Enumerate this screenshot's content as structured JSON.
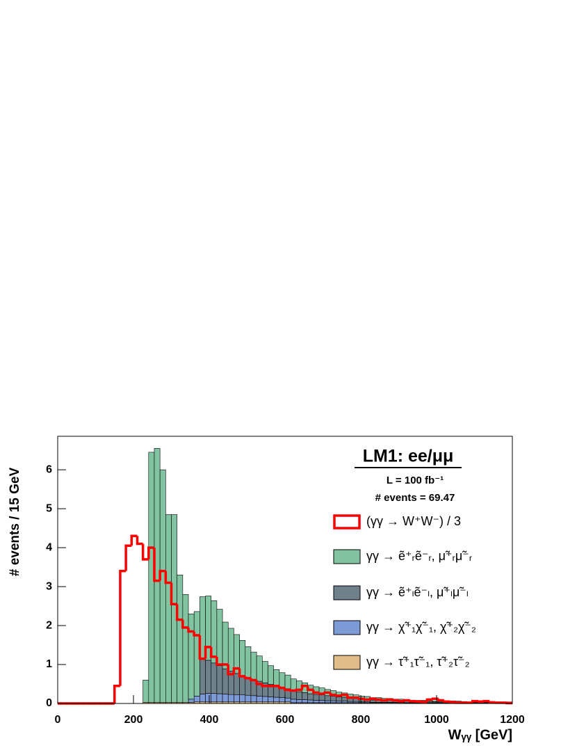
{
  "chart_data": {
    "type": "histogram",
    "title": "LM1: ee/μμ",
    "annotations": [
      "L = 100 fb⁻¹",
      "# events = 69.47"
    ],
    "x_label": "Wᵧᵧ [GeV]",
    "y_label": "# events / 15 GeV",
    "bins": [
      0,
      15,
      30,
      45,
      60,
      75,
      90,
      105,
      120,
      135,
      150,
      165,
      180,
      195,
      210,
      225,
      240,
      255,
      270,
      285,
      300,
      315,
      330,
      345,
      360,
      375,
      390,
      405,
      420,
      435,
      450,
      465,
      480,
      495,
      510,
      525,
      540,
      555,
      570,
      585,
      600,
      615,
      630,
      645,
      660,
      675,
      690,
      705,
      720,
      735,
      750,
      765,
      780,
      795,
      810,
      825,
      840,
      855,
      870,
      885,
      900,
      915,
      930,
      945,
      960,
      975,
      990,
      1005,
      1020,
      1035,
      1050,
      1065,
      1080,
      1095,
      1110,
      1125,
      1140,
      1155,
      1170,
      1185,
      1200
    ],
    "series": [
      {
        "name": "(γγ → W⁺W⁻) / 3",
        "color": "#ff0000",
        "stacked": false,
        "values": [
          0,
          0,
          0,
          0,
          0,
          0,
          0,
          0,
          0,
          0,
          0.45,
          3.4,
          4.05,
          4.3,
          4.1,
          3.7,
          4.0,
          3.15,
          3.4,
          3.1,
          2.55,
          2.15,
          1.95,
          1.85,
          1.75,
          1.15,
          1.45,
          1.2,
          1.0,
          1.0,
          0.75,
          0.9,
          0.7,
          0.65,
          0.6,
          0.5,
          0.45,
          0.45,
          0.45,
          0.4,
          0.35,
          0.33,
          0.35,
          0.45,
          0.35,
          0.28,
          0.25,
          0.28,
          0.22,
          0.2,
          0.22,
          0.15,
          0.15,
          0.12,
          0.1,
          0.12,
          0.1,
          0.08,
          0.1,
          0.08,
          0.06,
          0.08,
          0.06,
          0.05,
          0.04,
          0.1,
          0.12,
          0.08,
          0.05,
          0.04,
          0.02,
          0.02,
          0.02,
          0.06,
          0.05,
          0.06,
          0.03,
          0.02,
          0.02,
          0.01
        ]
      },
      {
        "name": "γγ → ẽ⁺ᵣẽ⁻ᵣ, μ̃⁺ᵣμ̃⁻ᵣ",
        "color": "#82c3a2",
        "stacked": true,
        "values": [
          0,
          0,
          0,
          0,
          0,
          0,
          0,
          0,
          0,
          0,
          0,
          0,
          0,
          0,
          0,
          0.57,
          6.42,
          6.52,
          5.97,
          4.82,
          4.82,
          3.27,
          2.77,
          2.19,
          2.17,
          1.6,
          1.65,
          1.6,
          1.45,
          1.2,
          1.1,
          1.0,
          0.9,
          0.8,
          0.7,
          0.65,
          0.55,
          0.48,
          0.42,
          0.38,
          0.35,
          0.3,
          0.28,
          0.25,
          0.22,
          0.2,
          0.18,
          0.16,
          0.14,
          0.12,
          0.11,
          0.1,
          0.09,
          0.08,
          0.07,
          0.06,
          0.06,
          0.05,
          0.05,
          0.04,
          0.04,
          0.03,
          0.03,
          0.03,
          0.03,
          0.02,
          0.02,
          0.02,
          0.02,
          0.02,
          0.02,
          0.01,
          0.01,
          0.01,
          0.01,
          0.01,
          0.01,
          0.01,
          0.01,
          0.01
        ]
      },
      {
        "name": "γγ → ẽ⁺ₗẽ⁻ₗ, μ̃⁺ₗμ̃⁻ₗ",
        "color": "#6e8089",
        "stacked": true,
        "values": [
          0,
          0,
          0,
          0,
          0,
          0,
          0,
          0,
          0,
          0,
          0,
          0,
          0,
          0,
          0,
          0,
          0,
          0,
          0,
          0,
          0,
          0,
          0,
          0,
          0,
          0.9,
          0.85,
          0.78,
          0.72,
          0.65,
          0.6,
          0.55,
          0.5,
          0.45,
          0.42,
          0.38,
          0.35,
          0.32,
          0.29,
          0.26,
          0.24,
          0.22,
          0.2,
          0.18,
          0.16,
          0.15,
          0.14,
          0.13,
          0.12,
          0.11,
          0.1,
          0.09,
          0.08,
          0.07,
          0.07,
          0.06,
          0.06,
          0.05,
          0.05,
          0.04,
          0.04,
          0.04,
          0.03,
          0.03,
          0.03,
          0.03,
          0.02,
          0.02,
          0.02,
          0.02,
          0.02,
          0.02,
          0.01,
          0.01,
          0.01,
          0.01,
          0.01,
          0.01,
          0.01,
          0.01
        ]
      },
      {
        "name": "γγ → χ̃⁺₁χ̃⁻₁, χ̃⁺₂χ̃⁻₂",
        "color": "#7b9ad6",
        "stacked": true,
        "values": [
          0,
          0,
          0,
          0,
          0,
          0,
          0,
          0,
          0,
          0,
          0,
          0,
          0,
          0,
          0,
          0,
          0,
          0,
          0,
          0,
          0,
          0,
          0,
          0.08,
          0.15,
          0.2,
          0.22,
          0.22,
          0.21,
          0.2,
          0.19,
          0.18,
          0.18,
          0.17,
          0.16,
          0.15,
          0.14,
          0.13,
          0.12,
          0.11,
          0.1,
          0.09,
          0.08,
          0.08,
          0.07,
          0.06,
          0.06,
          0.05,
          0.05,
          0.04,
          0.04,
          0.03,
          0.03,
          0.02,
          0.02,
          0.01,
          0.01,
          0.01,
          0.01,
          0.01,
          0.01,
          0.01,
          0.01,
          0.01,
          0.01,
          0.01,
          0.01,
          0.01,
          0.01,
          0.01,
          0.01,
          0.01,
          0.01,
          0.01,
          0.01,
          0.01,
          0.01,
          0.01,
          0.01,
          0.01
        ]
      },
      {
        "name": "γγ → τ̃⁺₁τ̃⁻₁, τ̃⁺₂τ̃⁻₂",
        "color": "#e0bd8a",
        "stacked": true,
        "values": [
          0,
          0,
          0,
          0,
          0,
          0,
          0,
          0,
          0,
          0,
          0,
          0,
          0,
          0,
          0,
          0.03,
          0.03,
          0.03,
          0.03,
          0.03,
          0.03,
          0.03,
          0.03,
          0.03,
          0.04,
          0.04,
          0.04,
          0.04,
          0.04,
          0.04,
          0.04,
          0.04,
          0.04,
          0.04,
          0.04,
          0.04,
          0.04,
          0.04,
          0.04,
          0.04,
          0.04,
          0.02,
          0.02,
          0.02,
          0.02,
          0.02,
          0.02,
          0.02,
          0.02,
          0.02,
          0.02,
          0.02,
          0.02,
          0.02,
          0.02,
          0.02,
          0.02,
          0.02,
          0.02,
          0.02,
          0.02,
          0.01,
          0.01,
          0.01,
          0.01,
          0.01,
          0.01,
          0.01,
          0.01,
          0.01,
          0.01,
          0.01,
          0.01,
          0.01,
          0.01,
          0.01,
          0.01,
          0.01,
          0.01,
          0.01
        ]
      }
    ],
    "xlim": [
      0,
      1200
    ],
    "xticks": [
      0,
      200,
      400,
      600,
      800,
      1000,
      1200
    ],
    "ylim": [
      0,
      6.86
    ],
    "yticks": [
      0,
      1,
      2,
      3,
      4,
      5,
      6
    ],
    "grid": false
  }
}
